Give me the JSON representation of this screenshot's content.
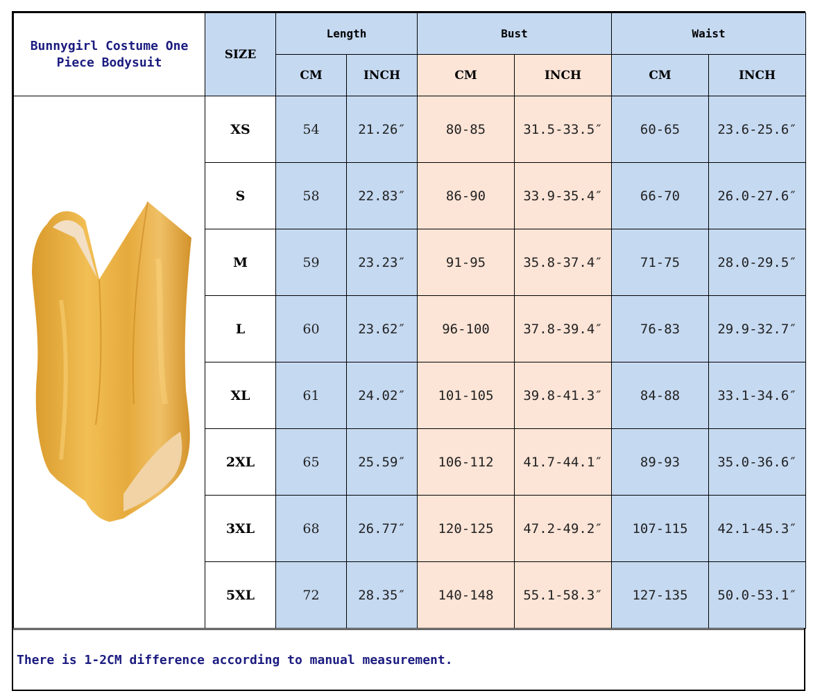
{
  "title": "Bunnygirl Costume One Piece Bodysuit",
  "size_header": "SIZE",
  "groups": [
    {
      "label": "Length",
      "units": [
        "CM",
        "INCH"
      ]
    },
    {
      "label": "Bust",
      "units": [
        "CM",
        "INCH"
      ]
    },
    {
      "label": "Waist",
      "units": [
        "CM",
        "INCH"
      ]
    }
  ],
  "rows": [
    {
      "size": "XS",
      "length_cm": "54",
      "length_in": "21.26″",
      "bust_cm": "80-85",
      "bust_in": "31.5-33.5″",
      "waist_cm": "60-65",
      "waist_in": "23.6-25.6″"
    },
    {
      "size": "S",
      "length_cm": "58",
      "length_in": "22.83″",
      "bust_cm": "86-90",
      "bust_in": "33.9-35.4″",
      "waist_cm": "66-70",
      "waist_in": "26.0-27.6″"
    },
    {
      "size": "M",
      "length_cm": "59",
      "length_in": "23.23″",
      "bust_cm": "91-95",
      "bust_in": "35.8-37.4″",
      "waist_cm": "71-75",
      "waist_in": "28.0-29.5″"
    },
    {
      "size": "L",
      "length_cm": "60",
      "length_in": "23.62″",
      "bust_cm": "96-100",
      "bust_in": "37.8-39.4″",
      "waist_cm": "76-83",
      "waist_in": "29.9-32.7″"
    },
    {
      "size": "XL",
      "length_cm": "61",
      "length_in": "24.02″",
      "bust_cm": "101-105",
      "bust_in": "39.8-41.3″",
      "waist_cm": "84-88",
      "waist_in": "33.1-34.6″"
    },
    {
      "size": "2XL",
      "length_cm": "65",
      "length_in": "25.59″",
      "bust_cm": "106-112",
      "bust_in": "41.7-44.1″",
      "waist_cm": "89-93",
      "waist_in": "35.0-36.6″"
    },
    {
      "size": "3XL",
      "length_cm": "68",
      "length_in": "26.77″",
      "bust_cm": "120-125",
      "bust_in": "47.2-49.2″",
      "waist_cm": "107-115",
      "waist_in": "42.1-45.3″"
    },
    {
      "size": "5XL",
      "length_cm": "72",
      "length_in": "28.35″",
      "bust_cm": "140-148",
      "bust_in": "55.1-58.3″",
      "waist_cm": "127-135",
      "waist_in": "50.0-53.1″"
    }
  ],
  "note": "There is 1-2CM difference according to manual measurement.",
  "colors": {
    "header_blue": "#c5d9f1",
    "bust_peach": "#fce4d6",
    "title_text": "#1b1b80",
    "garment": "#e8ad3e"
  },
  "image": {
    "icon": "golden-bodysuit-illustration"
  }
}
